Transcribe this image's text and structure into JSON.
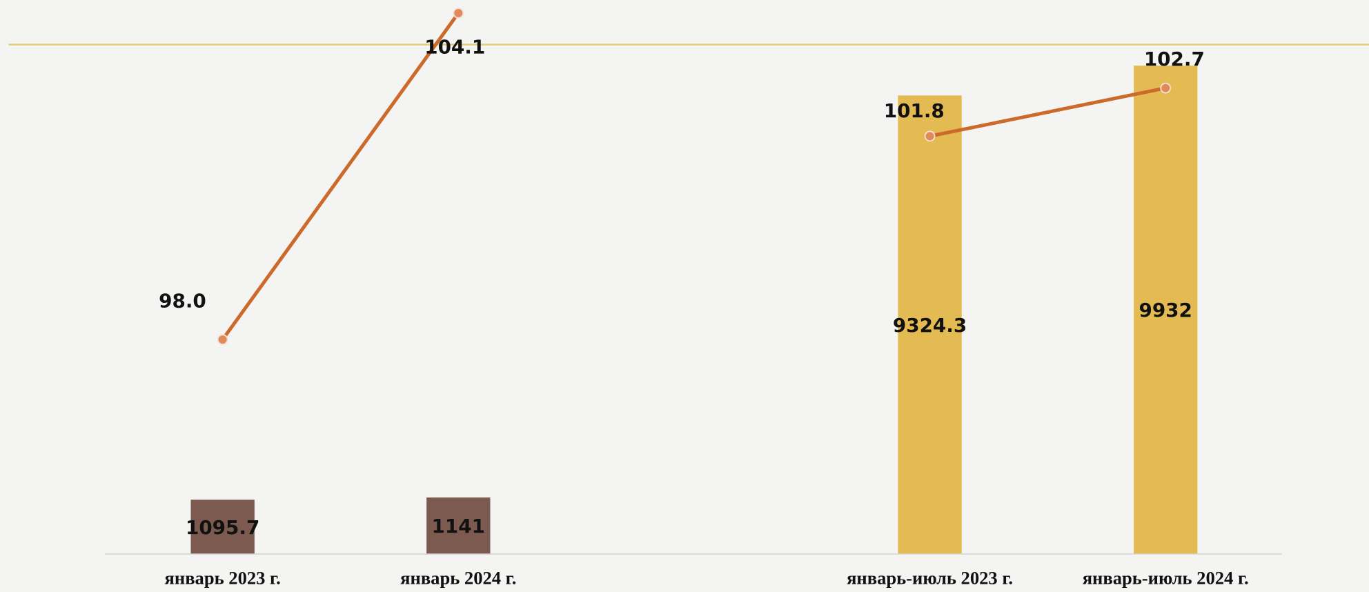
{
  "chart_data": {
    "type": "bar",
    "categories": [
      "январь 2023 г.",
      "январь 2024 г.",
      null,
      "январь-июль 2023 г.",
      "январь-июль 2024 г."
    ],
    "series": [
      {
        "type": "bar",
        "values": [
          1095.7,
          1141,
          null,
          9324.3,
          9932
        ],
        "colors": [
          "#7d5a50",
          "#7d5a50",
          null,
          "#e3bb52",
          "#e3bb52"
        ]
      },
      {
        "type": "line",
        "axis": "y2",
        "color": "#cc6a2c",
        "values": [
          98,
          104.1,
          null,
          101.8,
          102.7
        ],
        "value_labels": [
          "98.0",
          "104.1",
          null,
          "101.8",
          "102.7"
        ]
      }
    ],
    "ylim": [
      0,
      11000
    ],
    "y2lim": [
      94,
      104.1
    ]
  }
}
